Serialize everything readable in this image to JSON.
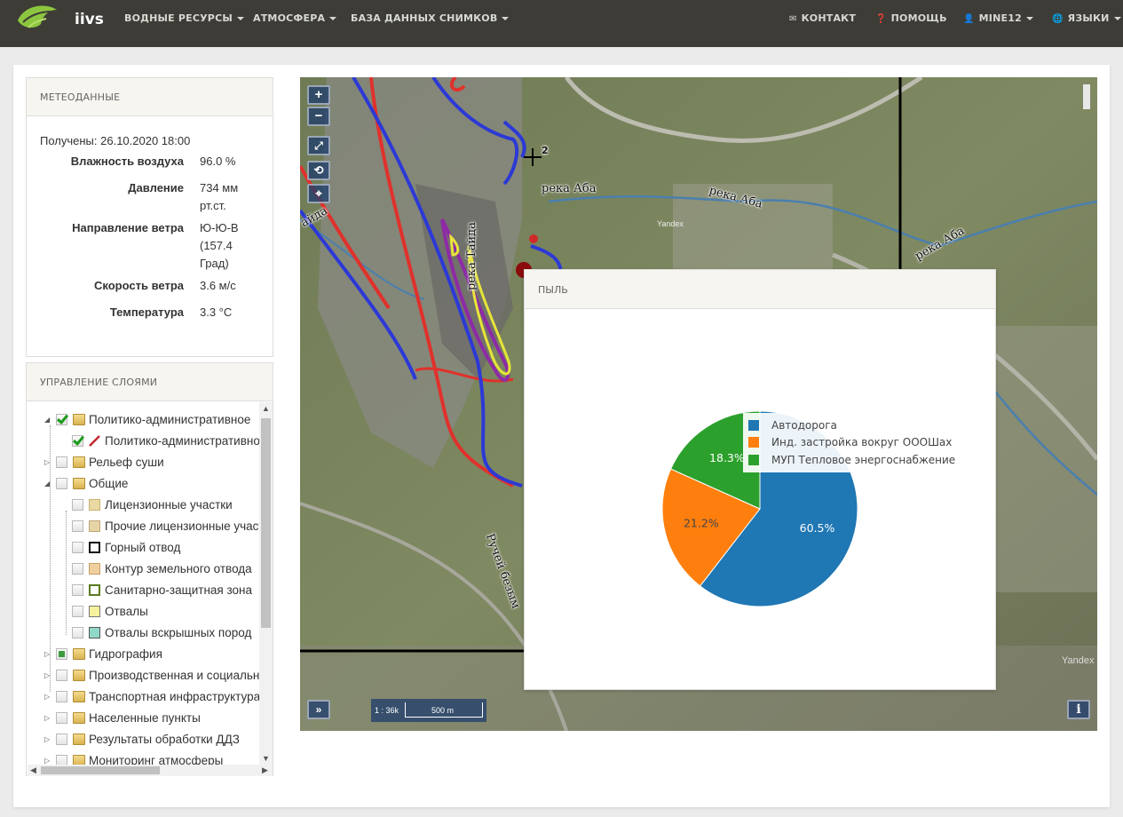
{
  "navbar": {
    "brand": "iivs",
    "menu": [
      {
        "label": "ВОДНЫЕ РЕСУРСЫ"
      },
      {
        "label": "АТМОСФЕРА"
      },
      {
        "label": "БАЗА ДАННЫХ СНИМКОВ"
      }
    ],
    "right": [
      {
        "label": "КОНТАКТ",
        "icon": "envelope-icon"
      },
      {
        "label": "ПОМОЩЬ",
        "icon": "question-circle-icon"
      },
      {
        "label": "MINE12",
        "icon": "user-icon"
      },
      {
        "label": "ЯЗЫКИ",
        "icon": "globe-icon"
      }
    ]
  },
  "meteo": {
    "title": "МЕТЕОДАННЫЕ",
    "received": "Получены: 26.10.2020 18:00",
    "rows": [
      {
        "label": "Влажность воздуха",
        "value": "96.0 %"
      },
      {
        "label": "Давление",
        "value": "734 мм рт.ст."
      },
      {
        "label": "Направление ветра",
        "value": "Ю-Ю-В (157.4 Град)"
      },
      {
        "label": "Скорость ветра",
        "value": "3.6 м/с"
      },
      {
        "label": "Температура",
        "value": "3.3 °C"
      }
    ]
  },
  "layers": {
    "title": "УПРАВЛЕНИЕ СЛОЯМИ",
    "items": [
      {
        "label": "Политико-административное"
      },
      {
        "label": "Политико-административное"
      },
      {
        "label": "Рельеф суши"
      },
      {
        "label": "Общие"
      },
      {
        "label": "Лицензионные участки"
      },
      {
        "label": "Прочие лицензионные участки"
      },
      {
        "label": "Горный отвод"
      },
      {
        "label": "Контур земельного отвода"
      },
      {
        "label": "Санитарно-защитная зона"
      },
      {
        "label": "Отвалы"
      },
      {
        "label": "Отвалы вскрышных пород"
      },
      {
        "label": "Гидрография"
      },
      {
        "label": "Производственная и социальная"
      },
      {
        "label": "Транспортная инфраструктура"
      },
      {
        "label": "Населенные пункты"
      },
      {
        "label": "Результаты обработки ДДЗ"
      },
      {
        "label": "Мониторинг атмосферы"
      }
    ]
  },
  "map": {
    "labels": {
      "river_aba_1": "река Аба",
      "river_aba_2": "река Аба",
      "river_aba_3": "река Аба",
      "river_tayda": "река Тайда",
      "tayda_partial": "айда",
      "stream": "Ручей безым",
      "marker": "2",
      "yandex_small": "Yandex",
      "yandex": "Yandex"
    },
    "scale_ratio": "1 : 36k",
    "scale_distance": "500 m"
  },
  "popup": {
    "title": "ПЫЛЬ"
  },
  "chart_data": {
    "type": "pie",
    "series": [
      {
        "name": "Автодорога",
        "value": 60.5,
        "label": "60.5%",
        "color": "#1f77b4"
      },
      {
        "name": "Инд. застройка вокруг ОООШах",
        "value": 21.2,
        "label": "21.2%",
        "color": "#ff7f0e"
      },
      {
        "name": "МУП Тепловое энергоснабжение",
        "value": 18.3,
        "label": "18.3%",
        "color": "#2ca02c"
      }
    ],
    "legend_position": "top-right"
  }
}
